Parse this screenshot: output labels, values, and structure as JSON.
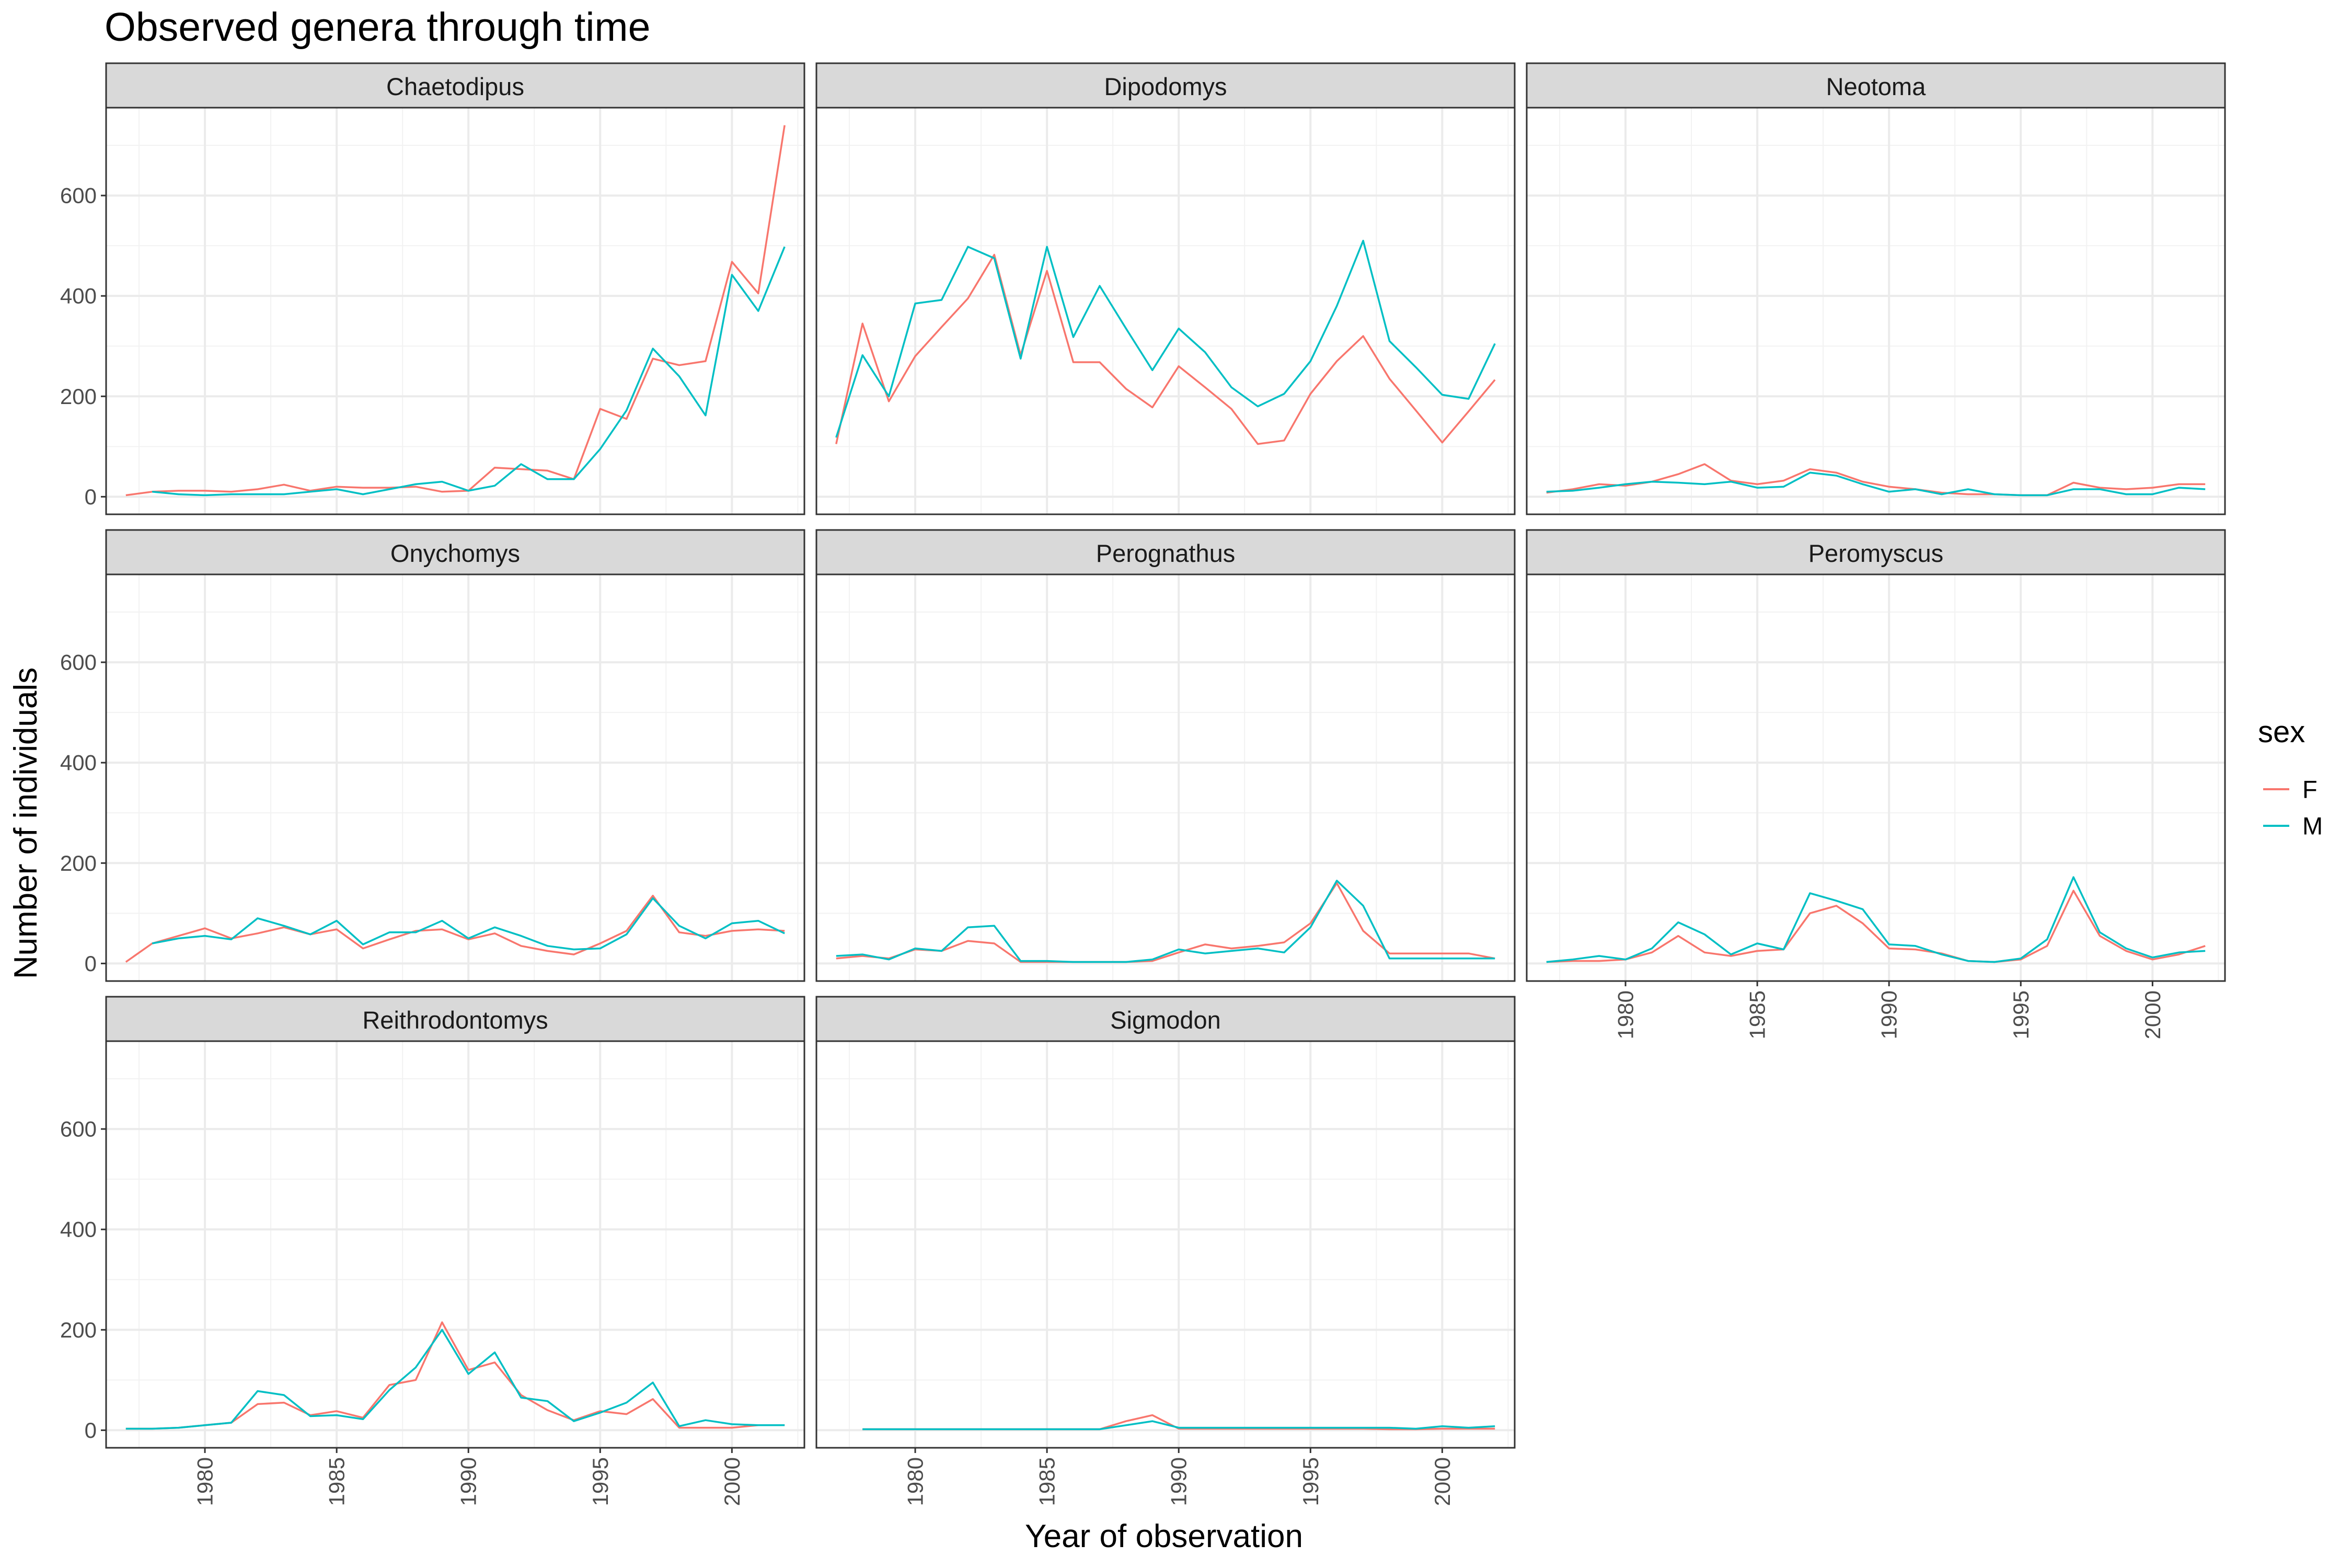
{
  "chart_data": {
    "type": "line",
    "title": "Observed genera through time",
    "xlabel": "Year of observation",
    "ylabel": "Number of individuals",
    "xlim": [
      1976.25,
      2002.75
    ],
    "ylim": [
      -35,
      775
    ],
    "x_ticks": [
      1980,
      1985,
      1990,
      1995,
      2000
    ],
    "y_ticks": [
      0,
      200,
      400,
      600
    ],
    "grid": true,
    "legend": {
      "title": "sex",
      "position": "right",
      "entries": [
        {
          "label": "F",
          "color": "#F8766D"
        },
        {
          "label": "M",
          "color": "#00BFC4"
        }
      ]
    },
    "panels": [
      {
        "label": "Chaetodipus",
        "series": [
          {
            "name": "F",
            "x": [
              1977,
              1978,
              1979,
              1980,
              1981,
              1982,
              1983,
              1984,
              1985,
              1986,
              1987,
              1988,
              1989,
              1990,
              1991,
              1992,
              1993,
              1994,
              1995,
              1996,
              1997,
              1998,
              1999,
              2000,
              2001,
              2002
            ],
            "y": [
              3,
              10,
              12,
              12,
              10,
              15,
              24,
              12,
              20,
              18,
              18,
              20,
              10,
              12,
              58,
              55,
              52,
              35,
              175,
              155,
              275,
              262,
              270,
              468,
              405,
              740
            ]
          },
          {
            "name": "M",
            "x": [
              1978,
              1979,
              1980,
              1981,
              1982,
              1983,
              1984,
              1985,
              1986,
              1987,
              1988,
              1989,
              1990,
              1991,
              1992,
              1993,
              1994,
              1995,
              1996,
              1997,
              1998,
              1999,
              2000,
              2001,
              2002
            ],
            "y": [
              10,
              5,
              3,
              5,
              5,
              5,
              10,
              15,
              5,
              15,
              25,
              30,
              12,
              22,
              65,
              35,
              35,
              95,
              172,
              295,
              240,
              162,
              442,
              370,
              498
            ]
          }
        ]
      },
      {
        "label": "Dipodomys",
        "series": [
          {
            "name": "F",
            "x": [
              1977,
              1978,
              1979,
              1980,
              1981,
              1982,
              1983,
              1984,
              1985,
              1986,
              1987,
              1988,
              1989,
              1990,
              1991,
              1992,
              1993,
              1994,
              1995,
              1996,
              1997,
              1998,
              1999,
              2000,
              2001,
              2002
            ],
            "y": [
              105,
              345,
              190,
              280,
              338,
              395,
              482,
              282,
              450,
              268,
              268,
              215,
              178,
              260,
              218,
              175,
              105,
              112,
              205,
              270,
              320,
              235,
              172,
              108,
              170,
              233
            ]
          },
          {
            "name": "M",
            "x": [
              1977,
              1978,
              1979,
              1980,
              1981,
              1982,
              1983,
              1984,
              1985,
              1986,
              1987,
              1988,
              1989,
              1990,
              1991,
              1992,
              1993,
              1994,
              1995,
              1996,
              1997,
              1998,
              1999,
              2000,
              2001,
              2002
            ],
            "y": [
              118,
              282,
              200,
              385,
              392,
              498,
              475,
              275,
              498,
              318,
              420,
              335,
              252,
              335,
              288,
              218,
              180,
              205,
              270,
              380,
              510,
              310,
              258,
              203,
              195,
              305
            ]
          }
        ]
      },
      {
        "label": "Neotoma",
        "series": [
          {
            "name": "F",
            "x": [
              1977,
              1978,
              1979,
              1980,
              1981,
              1982,
              1983,
              1984,
              1985,
              1986,
              1987,
              1988,
              1989,
              1990,
              1991,
              1992,
              1993,
              1994,
              1995,
              1996,
              1997,
              1998,
              1999,
              2000,
              2001,
              2002
            ],
            "y": [
              8,
              15,
              25,
              22,
              30,
              45,
              65,
              32,
              25,
              32,
              55,
              48,
              30,
              20,
              15,
              8,
              5,
              5,
              3,
              3,
              28,
              18,
              15,
              18,
              25,
              25
            ]
          },
          {
            "name": "M",
            "x": [
              1977,
              1978,
              1979,
              1980,
              1981,
              1982,
              1983,
              1984,
              1985,
              1986,
              1987,
              1988,
              1989,
              1990,
              1991,
              1992,
              1993,
              1994,
              1995,
              1996,
              1997,
              1998,
              1999,
              2000,
              2001,
              2002
            ],
            "y": [
              10,
              12,
              18,
              25,
              30,
              28,
              25,
              30,
              18,
              20,
              48,
              42,
              25,
              10,
              15,
              5,
              15,
              5,
              3,
              3,
              15,
              15,
              5,
              5,
              18,
              15
            ]
          }
        ]
      },
      {
        "label": "Onychomys",
        "series": [
          {
            "name": "F",
            "x": [
              1977,
              1978,
              1979,
              1980,
              1981,
              1982,
              1983,
              1984,
              1985,
              1986,
              1987,
              1988,
              1989,
              1990,
              1991,
              1992,
              1993,
              1994,
              1995,
              1996,
              1997,
              1998,
              1999,
              2000,
              2001,
              2002
            ],
            "y": [
              3,
              40,
              55,
              70,
              50,
              60,
              72,
              58,
              68,
              30,
              48,
              65,
              68,
              48,
              60,
              35,
              25,
              18,
              40,
              65,
              135,
              62,
              55,
              65,
              68,
              65
            ]
          },
          {
            "name": "M",
            "x": [
              1978,
              1979,
              1980,
              1981,
              1982,
              1983,
              1984,
              1985,
              1986,
              1987,
              1988,
              1989,
              1990,
              1991,
              1992,
              1993,
              1994,
              1995,
              1996,
              1997,
              1998,
              1999,
              2000,
              2001,
              2002
            ],
            "y": [
              40,
              50,
              55,
              48,
              90,
              75,
              58,
              85,
              38,
              62,
              62,
              85,
              50,
              72,
              55,
              35,
              28,
              30,
              58,
              130,
              75,
              50,
              80,
              85,
              60
            ]
          }
        ]
      },
      {
        "label": "Perognathus",
        "series": [
          {
            "name": "F",
            "x": [
              1977,
              1978,
              1979,
              1980,
              1981,
              1982,
              1983,
              1984,
              1985,
              1986,
              1987,
              1988,
              1989,
              1990,
              1991,
              1992,
              1993,
              1994,
              1995,
              1996,
              1997,
              1998,
              1999,
              2000,
              2001,
              2002
            ],
            "y": [
              10,
              15,
              10,
              28,
              25,
              45,
              40,
              3,
              3,
              3,
              3,
              3,
              5,
              22,
              38,
              30,
              35,
              42,
              80,
              160,
              65,
              20,
              20,
              20,
              20,
              10
            ]
          },
          {
            "name": "M",
            "x": [
              1977,
              1978,
              1979,
              1980,
              1981,
              1982,
              1983,
              1984,
              1985,
              1986,
              1987,
              1988,
              1989,
              1990,
              1991,
              1992,
              1993,
              1994,
              1995,
              1996,
              1997,
              1998,
              1999,
              2000,
              2001,
              2002
            ],
            "y": [
              15,
              18,
              8,
              30,
              25,
              72,
              75,
              5,
              5,
              3,
              3,
              3,
              8,
              28,
              20,
              25,
              30,
              22,
              72,
              165,
              115,
              10,
              10,
              10,
              10,
              10
            ]
          }
        ]
      },
      {
        "label": "Peromyscus",
        "series": [
          {
            "name": "F",
            "x": [
              1977,
              1978,
              1979,
              1980,
              1981,
              1982,
              1983,
              1984,
              1985,
              1986,
              1987,
              1988,
              1989,
              1990,
              1991,
              1992,
              1993,
              1994,
              1995,
              1996,
              1997,
              1998,
              1999,
              2000,
              2001,
              2002
            ],
            "y": [
              3,
              5,
              5,
              8,
              22,
              55,
              22,
              15,
              25,
              28,
              100,
              115,
              80,
              30,
              28,
              20,
              5,
              3,
              8,
              35,
              145,
              55,
              25,
              8,
              18,
              35
            ]
          },
          {
            "name": "M",
            "x": [
              1977,
              1978,
              1979,
              1980,
              1981,
              1982,
              1983,
              1984,
              1985,
              1986,
              1987,
              1988,
              1989,
              1990,
              1991,
              1992,
              1993,
              1994,
              1995,
              1996,
              1997,
              1998,
              1999,
              2000,
              2001,
              2002
            ],
            "y": [
              3,
              8,
              15,
              8,
              30,
              82,
              58,
              18,
              40,
              28,
              140,
              125,
              108,
              38,
              35,
              18,
              5,
              3,
              10,
              48,
              172,
              62,
              30,
              12,
              22,
              25
            ]
          }
        ]
      },
      {
        "label": "Reithrodontomys",
        "series": [
          {
            "name": "F",
            "x": [
              1977,
              1978,
              1979,
              1980,
              1981,
              1982,
              1983,
              1984,
              1985,
              1986,
              1987,
              1988,
              1989,
              1990,
              1991,
              1992,
              1993,
              1994,
              1995,
              1996,
              1997,
              1998,
              1999,
              2000,
              2001,
              2002
            ],
            "y": [
              3,
              3,
              5,
              10,
              15,
              52,
              55,
              30,
              38,
              25,
              90,
              100,
              215,
              120,
              135,
              70,
              40,
              20,
              38,
              32,
              62,
              5,
              5,
              5,
              10,
              10
            ]
          },
          {
            "name": "M",
            "x": [
              1977,
              1978,
              1979,
              1980,
              1981,
              1982,
              1983,
              1984,
              1985,
              1986,
              1987,
              1988,
              1989,
              1990,
              1991,
              1992,
              1993,
              1994,
              1995,
              1996,
              1997,
              1998,
              1999,
              2000,
              2001,
              2002
            ],
            "y": [
              3,
              3,
              5,
              10,
              15,
              78,
              70,
              28,
              30,
              22,
              80,
              125,
              200,
              112,
              155,
              65,
              58,
              18,
              35,
              55,
              95,
              8,
              20,
              12,
              10,
              10
            ]
          }
        ]
      },
      {
        "label": "Sigmodon",
        "series": [
          {
            "name": "F",
            "x": [
              1978,
              1979,
              1980,
              1981,
              1982,
              1983,
              1984,
              1985,
              1986,
              1987,
              1988,
              1989,
              1990,
              1991,
              1992,
              1993,
              1994,
              1995,
              1996,
              1997,
              1998,
              1999,
              2000,
              2001,
              2002
            ],
            "y": [
              2,
              2,
              2,
              2,
              2,
              2,
              2,
              2,
              2,
              2,
              18,
              30,
              3,
              3,
              3,
              3,
              3,
              3,
              3,
              3,
              2,
              2,
              3,
              3,
              3
            ]
          },
          {
            "name": "M",
            "x": [
              1978,
              1979,
              1980,
              1981,
              1982,
              1983,
              1984,
              1985,
              1986,
              1987,
              1988,
              1989,
              1990,
              1991,
              1992,
              1993,
              1994,
              1995,
              1996,
              1997,
              1998,
              1999,
              2000,
              2001,
              2002
            ],
            "y": [
              2,
              2,
              2,
              2,
              2,
              2,
              2,
              2,
              2,
              2,
              10,
              18,
              5,
              5,
              5,
              5,
              5,
              5,
              5,
              5,
              5,
              3,
              8,
              5,
              8
            ]
          }
        ]
      }
    ]
  }
}
